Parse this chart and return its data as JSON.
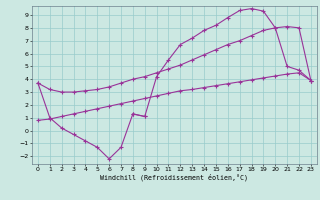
{
  "bg_color": "#cce8e2",
  "grid_color": "#99cccc",
  "line_color": "#993399",
  "xlabel": "Windchill (Refroidissement éolien,°C)",
  "xlim": [
    -0.5,
    23.5
  ],
  "ylim": [
    -2.6,
    9.7
  ],
  "xticks": [
    0,
    1,
    2,
    3,
    4,
    5,
    6,
    7,
    8,
    9,
    10,
    11,
    12,
    13,
    14,
    15,
    16,
    17,
    18,
    19,
    20,
    21,
    22,
    23
  ],
  "yticks": [
    -2,
    -1,
    0,
    1,
    2,
    3,
    4,
    5,
    6,
    7,
    8,
    9
  ],
  "curve1_x": [
    0,
    1,
    2,
    3,
    4,
    5,
    6,
    7,
    8,
    9,
    10,
    11,
    12,
    13,
    14,
    15,
    16,
    17,
    18,
    19,
    20,
    21,
    22,
    23
  ],
  "curve1_y": [
    3.7,
    3.2,
    3.0,
    3.0,
    3.1,
    3.2,
    3.4,
    3.7,
    4.0,
    4.2,
    4.5,
    4.8,
    5.1,
    5.5,
    5.9,
    6.3,
    6.7,
    7.0,
    7.4,
    7.8,
    8.0,
    8.1,
    8.0,
    3.9
  ],
  "curve2a_x": [
    0,
    1,
    2,
    3,
    4,
    5,
    6,
    7,
    8,
    9
  ],
  "curve2a_y": [
    3.7,
    1.0,
    0.2,
    -0.3,
    -0.8,
    -1.3,
    -2.2,
    -1.3,
    1.3,
    1.1
  ],
  "curve2b_x": [
    8,
    9,
    10,
    11,
    12,
    13,
    14,
    15,
    16,
    17,
    18,
    19,
    20,
    21,
    22,
    23
  ],
  "curve2b_y": [
    1.3,
    1.1,
    4.2,
    5.5,
    6.7,
    7.2,
    7.8,
    8.2,
    8.8,
    9.35,
    9.5,
    9.3,
    8.0,
    5.0,
    4.7,
    3.9
  ],
  "curve3_x": [
    0,
    1,
    2,
    3,
    4,
    5,
    6,
    7,
    8,
    9,
    10,
    11,
    12,
    13,
    14,
    15,
    16,
    17,
    18,
    19,
    20,
    21,
    22,
    23
  ],
  "curve3_y": [
    0.8,
    0.9,
    1.1,
    1.3,
    1.5,
    1.7,
    1.9,
    2.1,
    2.3,
    2.5,
    2.7,
    2.9,
    3.1,
    3.2,
    3.35,
    3.5,
    3.65,
    3.8,
    3.95,
    4.1,
    4.25,
    4.4,
    4.5,
    3.9
  ]
}
